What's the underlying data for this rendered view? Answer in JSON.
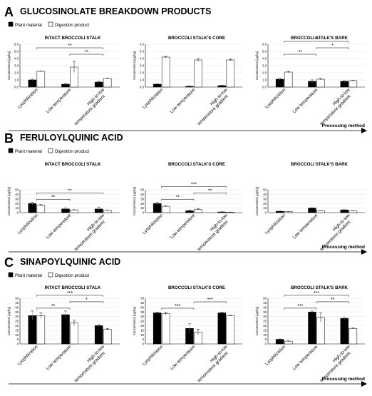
{
  "colors": {
    "plant": "#000000",
    "digestion": "#ffffff",
    "axis": "#000000",
    "grid": "#dddddd"
  },
  "chart_data": [
    {
      "panel": "A",
      "heading": "GLUCOSINOLATE BREAKDOWN PRODUCTS",
      "legend": [
        "Plant material",
        "Digestion product"
      ],
      "arrow_label": "Processing method",
      "charts": [
        {
          "type": "bar",
          "title": "INTACT BROCCOLI STALK",
          "ylabel": "Concentration [µg/kg]",
          "categories": [
            "Lyophilization",
            "Low temperature",
            "High-to-low temperature gradient"
          ],
          "ylim": [
            0,
            6
          ],
          "yticks": [
            "0.0",
            "1.0",
            "2.0",
            "3.0",
            "4.0",
            "5.0",
            "6.0"
          ],
          "series": [
            {
              "name": "Plant material",
              "values": [
                1.0,
                0.4,
                0.7
              ],
              "errors": [
                0.1,
                0.1,
                0.1
              ]
            },
            {
              "name": "Digestion product",
              "values": [
                2.2,
                2.8,
                1.2
              ],
              "errors": [
                0.05,
                0.8,
                0.05
              ]
            }
          ],
          "brackets": [
            {
              "from": 0,
              "to": 2,
              "label": "**"
            },
            {
              "from": 1,
              "to": 2,
              "label": "**"
            }
          ]
        },
        {
          "type": "bar",
          "title": "BROCCOLI STALK'S CORE",
          "ylabel": "Concentration [µg/kg]",
          "categories": [
            "Lyophilization",
            "Low temperature",
            "High-to-low temperature gradient"
          ],
          "ylim": [
            0,
            6
          ],
          "yticks": [
            "0.0",
            "1.0",
            "2.0",
            "3.0",
            "4.0",
            "5.0",
            "6.0"
          ],
          "series": [
            {
              "name": "Plant material",
              "values": [
                0.4,
                0.1,
                0.2
              ],
              "errors": [
                0.05,
                0.05,
                0.05
              ]
            },
            {
              "name": "Digestion product",
              "values": [
                4.2,
                3.8,
                3.8
              ],
              "errors": [
                0.1,
                0.2,
                0.1
              ]
            }
          ],
          "brackets": []
        },
        {
          "type": "bar",
          "title": "BROCCOLI STALK'S BARK",
          "ylabel": "Concentration [µg/kg]",
          "categories": [
            "Lyophilization",
            "Low temperature",
            "High-to-low temperature gradient"
          ],
          "ylim": [
            0,
            6
          ],
          "yticks": [
            "0.0",
            "1.0",
            "2.0",
            "3.0",
            "4.0",
            "5.0",
            "6.0"
          ],
          "series": [
            {
              "name": "Plant material",
              "values": [
                1.1,
                0.8,
                0.8
              ],
              "errors": [
                0.1,
                0.2,
                0.1
              ]
            },
            {
              "name": "Digestion product",
              "values": [
                2.1,
                1.1,
                0.9
              ],
              "errors": [
                0.1,
                0.1,
                0.05
              ]
            }
          ],
          "brackets": [
            {
              "from": 0,
              "to": 2,
              "label": "**"
            },
            {
              "from": 0,
              "to": 1,
              "label": "**"
            },
            {
              "from": 1,
              "to": 2,
              "label": "*"
            }
          ]
        }
      ]
    },
    {
      "panel": "B",
      "heading": "FERULOYLQUINIC ACID",
      "legend": [
        "Plant material",
        "Digestion product"
      ],
      "arrow_label": "Processing method",
      "charts": [
        {
          "type": "bar",
          "title": "INTACT BROCCOLI STALK",
          "ylabel": "Concentration [µg/kg]",
          "categories": [
            "Lyophilization",
            "Low temperature",
            "High-to-low temperature gradient"
          ],
          "ylim": [
            0,
            50
          ],
          "yticks": [
            "0",
            "10",
            "20",
            "30",
            "40",
            "50"
          ],
          "series": [
            {
              "name": "Plant material",
              "values": [
                20,
                8,
                8
              ],
              "errors": [
                3,
                2,
                4
              ]
            },
            {
              "name": "Digestion product",
              "values": [
                16,
                6,
                5
              ],
              "errors": [
                1.5,
                0.5,
                0.5
              ]
            }
          ],
          "brackets": [
            {
              "from": 0,
              "to": 1,
              "label": "**"
            },
            {
              "from": 0,
              "to": 2,
              "label": "**"
            }
          ]
        },
        {
          "type": "bar",
          "title": "BROCCOLI STALK'S CORE",
          "ylabel": "Concentration [µg/kg]",
          "categories": [
            "Lyophilization",
            "Low temperature",
            "High-to-low temperature gradient"
          ],
          "ylim": [
            0,
            50
          ],
          "yticks": [
            "0",
            "10",
            "20",
            "30",
            "40",
            "50"
          ],
          "series": [
            {
              "name": "Plant material",
              "values": [
                20,
                4,
                1.5
              ],
              "errors": [
                3,
                1.5,
                0.3
              ]
            },
            {
              "name": "Digestion product",
              "values": [
                14,
                7,
                1
              ],
              "errors": [
                1,
                1.5,
                0.3
              ]
            }
          ],
          "brackets": [
            {
              "from": 0,
              "to": 1,
              "label": "**"
            },
            {
              "from": 0,
              "to": 2,
              "label": "***"
            },
            {
              "from": 1,
              "to": 2,
              "label": "**"
            }
          ]
        },
        {
          "type": "bar",
          "title": "BROCCOLI STALK'S BARK",
          "ylabel": "Concentration [µg/kg]",
          "categories": [
            "Lyophilization",
            "Low temperature",
            "High-to-low temperature gradient"
          ],
          "ylim": [
            0,
            50
          ],
          "yticks": [
            "0",
            "10",
            "20",
            "30",
            "40",
            "50"
          ],
          "series": [
            {
              "name": "Plant material",
              "values": [
                3,
                10,
                6
              ],
              "errors": [
                0.3,
                0.5,
                0.3
              ]
            },
            {
              "name": "Digestion product",
              "values": [
                2.5,
                4,
                4
              ],
              "errors": [
                0.3,
                0.3,
                0.3
              ]
            }
          ],
          "brackets": []
        }
      ]
    },
    {
      "panel": "C",
      "heading": "SINAPOYLQUINIC ACID",
      "legend": [
        "Plant material",
        "Digestion product"
      ],
      "arrow_label": "Processing method",
      "charts": [
        {
          "type": "bar",
          "title": "INTACT BROCCOLI STALK",
          "ylabel": "Concentration [µg/kg]",
          "categories": [
            "Lyophilization",
            "Low temperature",
            "High-to-low temperature gradient"
          ],
          "ylim": [
            0,
            50
          ],
          "yticks": [
            "0",
            "5",
            "10",
            "15",
            "20",
            "25",
            "30",
            "35",
            "40",
            "45",
            "50"
          ],
          "series": [
            {
              "name": "Plant material",
              "values": [
                31,
                32,
                20
              ],
              "errors": [
                5,
                4,
                1
              ]
            },
            {
              "name": "Digestion product",
              "values": [
                31,
                23,
                16
              ],
              "errors": [
                3,
                3,
                1
              ]
            }
          ],
          "brackets": [
            {
              "from": 0,
              "to": 2,
              "label": "***"
            },
            {
              "from": 0,
              "to": 1,
              "label": "**"
            },
            {
              "from": 1,
              "to": 2,
              "label": "*"
            }
          ]
        },
        {
          "type": "bar",
          "title": "BROCCOLI STALK'S CORE",
          "ylabel": "Concentration [µg/kg]",
          "categories": [
            "Lyophilization",
            "Low temperature",
            "High-to-low temperature gradient"
          ],
          "ylim": [
            0,
            50
          ],
          "yticks": [
            "0",
            "5",
            "10",
            "15",
            "20",
            "25",
            "30",
            "35",
            "40",
            "45",
            "50"
          ],
          "series": [
            {
              "name": "Plant material",
              "values": [
                34,
                17,
                34
              ],
              "errors": [
                0.5,
                5,
                0.5
              ]
            },
            {
              "name": "Digestion product",
              "values": [
                33,
                13,
                31
              ],
              "errors": [
                1.5,
                3,
                0.5
              ]
            }
          ],
          "brackets": [
            {
              "from": 0,
              "to": 1,
              "label": "***"
            },
            {
              "from": 1,
              "to": 2,
              "label": "***"
            }
          ]
        },
        {
          "type": "bar",
          "title": "BROCCOLI STALK'S BARK",
          "ylabel": "Concentration [µg/kg]",
          "categories": [
            "Lyophilization",
            "Low temperature",
            "High-to-low temperature gradient"
          ],
          "ylim": [
            0,
            50
          ],
          "yticks": [
            "0",
            "5",
            "10",
            "15",
            "20",
            "25",
            "30",
            "35",
            "40",
            "45",
            "50"
          ],
          "series": [
            {
              "name": "Plant material",
              "values": [
                5,
                35,
                28
              ],
              "errors": [
                0.5,
                1,
                1
              ]
            },
            {
              "name": "Digestion product",
              "values": [
                3,
                29,
                17
              ],
              "errors": [
                0.3,
                5,
                0.5
              ]
            }
          ],
          "brackets": [
            {
              "from": 0,
              "to": 2,
              "label": "***"
            },
            {
              "from": 0,
              "to": 1,
              "label": "***"
            },
            {
              "from": 1,
              "to": 2,
              "label": "**"
            }
          ]
        }
      ]
    }
  ]
}
